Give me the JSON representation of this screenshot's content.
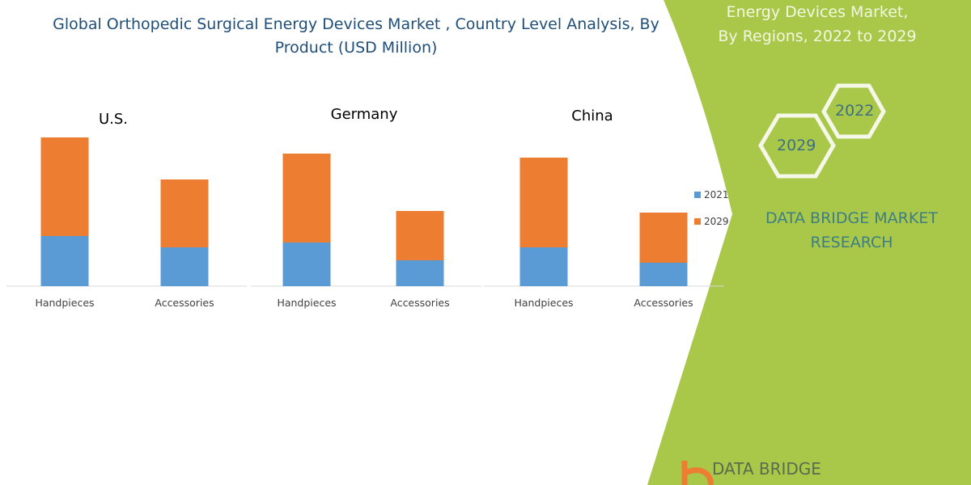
{
  "left_title": "Global Orthopedic Surgical Energy Devices Market , Country Level Analysis, By Product (USD Million)",
  "right_panel": {
    "title_lines": [
      "Energy Devices Market,",
      "By Regions, 2022 to 2029"
    ],
    "hex_labels": [
      "2022",
      "2029"
    ],
    "brand": "DATA BRIDGE MARKET RESEARCH",
    "logo_text": "DATA BRIDGE"
  },
  "colors": {
    "2021": "#5b9bd5",
    "2029": "#ed7d31",
    "panel": "#a9c84a"
  },
  "chart_data": [
    {
      "type": "bar",
      "stacked": true,
      "title": "U.S.",
      "categories": [
        "Handpieces",
        "Accessories"
      ],
      "series": [
        {
          "name": "2021",
          "values": [
            62,
            48
          ]
        },
        {
          "name": "2029",
          "values": [
            122,
            84
          ]
        }
      ],
      "grid": false
    },
    {
      "type": "bar",
      "stacked": true,
      "title": "Germany",
      "categories": [
        "Handpieces",
        "Accessories"
      ],
      "series": [
        {
          "name": "2021",
          "values": [
            54,
            32
          ]
        },
        {
          "name": "2029",
          "values": [
            110,
            61
          ]
        }
      ],
      "grid": false
    },
    {
      "type": "bar",
      "stacked": true,
      "title": "China",
      "categories": [
        "Handpieces",
        "Accessories"
      ],
      "series": [
        {
          "name": "2021",
          "values": [
            48,
            29
          ]
        },
        {
          "name": "2029",
          "values": [
            111,
            62
          ]
        }
      ],
      "grid": false,
      "legend": "right"
    }
  ]
}
